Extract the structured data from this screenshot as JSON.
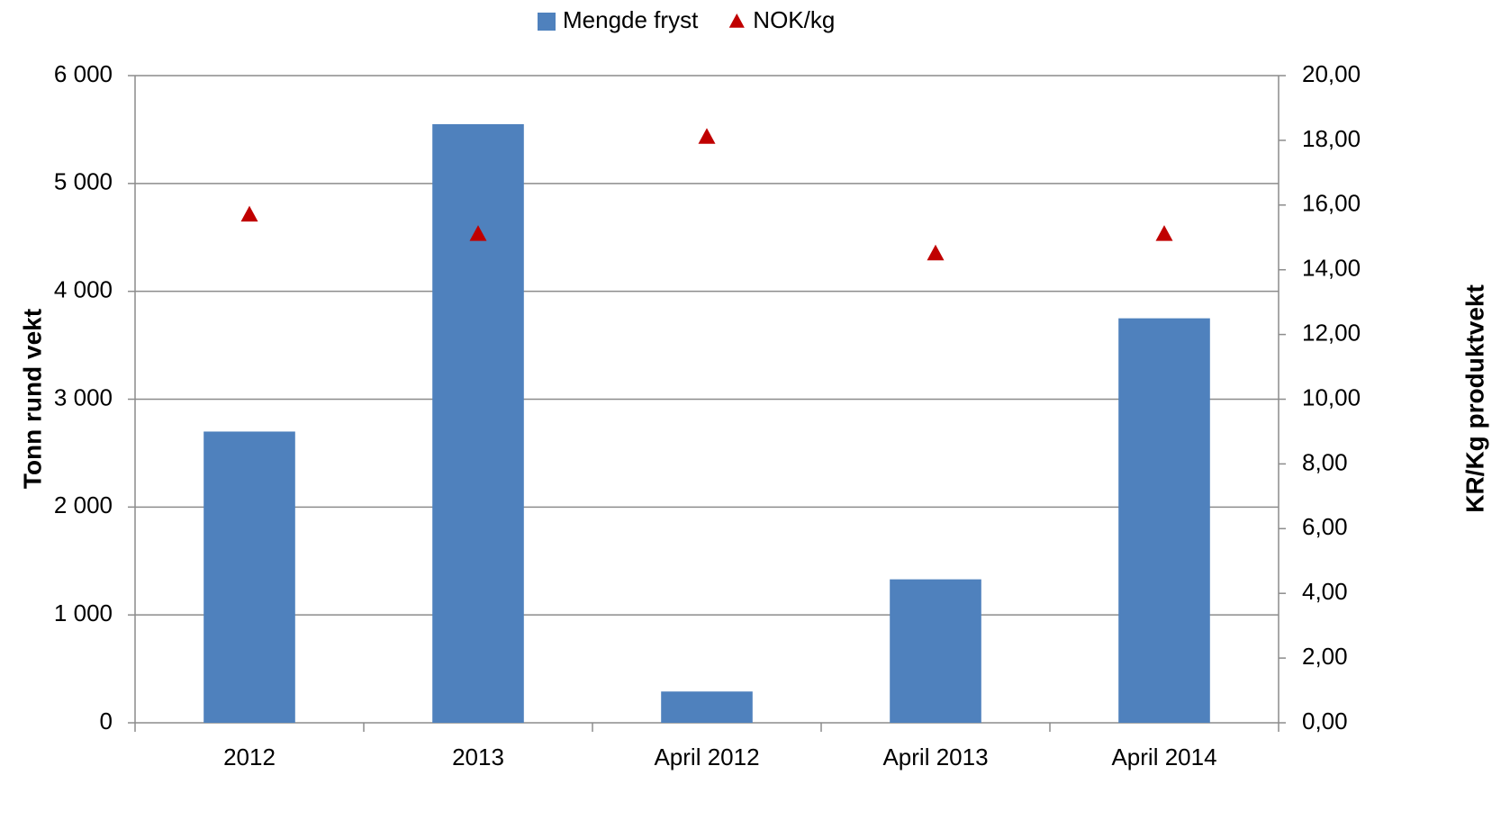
{
  "chart_data": {
    "type": "bar",
    "categories": [
      "2012",
      "2013",
      "April 2012",
      "April 2013",
      "April 2014"
    ],
    "series": [
      {
        "name": "Mengde fryst",
        "type": "bar",
        "color": "#4f81bd",
        "values": [
          2700,
          5550,
          290,
          1330,
          3750
        ]
      },
      {
        "name": "NOK/kg",
        "type": "scatter",
        "marker": "triangle",
        "color": "#c00000",
        "axis": "y2",
        "values": [
          15.7,
          15.1,
          18.1,
          14.5,
          15.1
        ]
      }
    ],
    "ylabel": "Tonn rund vekt",
    "y2label": "KR/Kg produktvekt",
    "ylim": [
      0,
      6000
    ],
    "yticks": [
      0,
      {
        "value": 1000,
        "label": "1 000"
      },
      {
        "value": 2000,
        "label": "2 000"
      },
      {
        "value": 3000,
        "label": "3 000"
      },
      {
        "value": 4000,
        "label": "4 000"
      },
      {
        "value": 5000,
        "label": "5 000"
      },
      {
        "value": 6000,
        "label": "6 000"
      }
    ],
    "y2lim": [
      0,
      20
    ],
    "y2ticks": [
      {
        "value": 0,
        "label": "0,00"
      },
      {
        "value": 2,
        "label": "2,00"
      },
      {
        "value": 4,
        "label": "4,00"
      },
      {
        "value": 6,
        "label": "6,00"
      },
      {
        "value": 8,
        "label": "8,00"
      },
      {
        "value": 10,
        "label": "10,00"
      },
      {
        "value": 12,
        "label": "12,00"
      },
      {
        "value": 14,
        "label": "14,00"
      },
      {
        "value": 16,
        "label": "16,00"
      },
      {
        "value": 18,
        "label": "18,00"
      },
      {
        "value": 20,
        "label": "20,00"
      }
    ],
    "grid": true,
    "legend": "top"
  }
}
